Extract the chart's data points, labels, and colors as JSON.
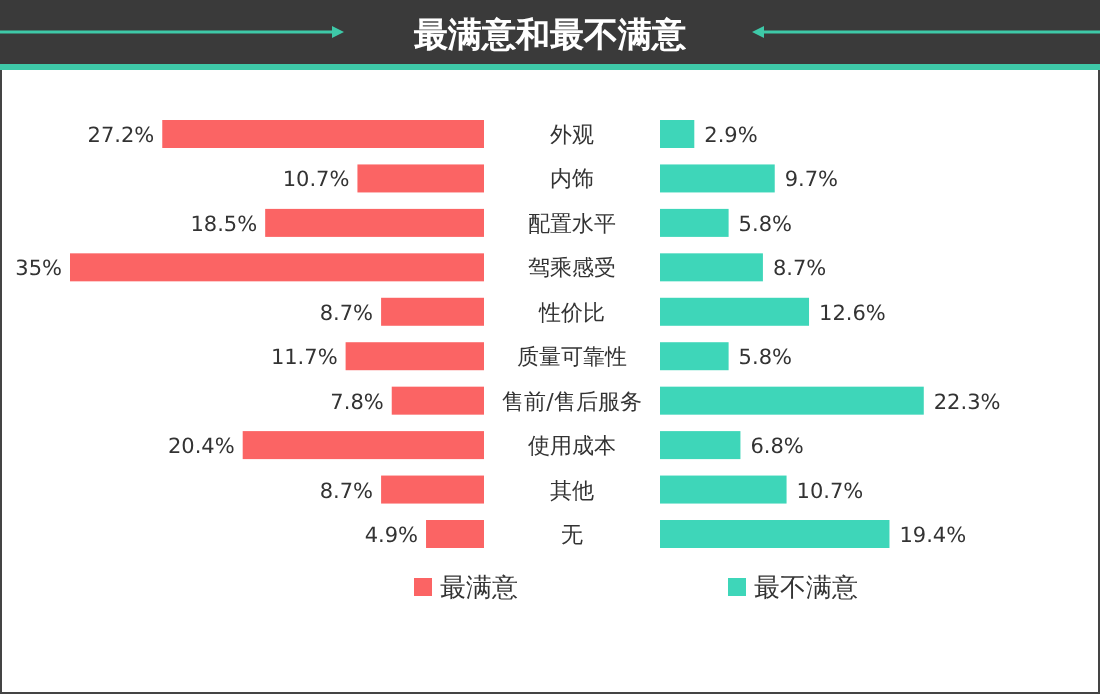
{
  "chart_data": [
    {
      "type": "bar",
      "orientation": "horizontal",
      "title": "最满意和最不满意",
      "categories": [
        "外观",
        "内饰",
        "配置水平",
        "驾乘感受",
        "性价比",
        "质量可靠性",
        "售前/售后服务",
        "使用成本",
        "其他",
        "无"
      ],
      "series": [
        {
          "name": "最满意",
          "color": "#fb6464",
          "values": [
            27.2,
            10.7,
            18.5,
            35,
            8.7,
            11.7,
            7.8,
            20.4,
            8.7,
            4.9
          ],
          "value_labels": [
            "27.2%",
            "10.7%",
            "18.5%",
            "35%",
            "8.7%",
            "11.7%",
            "7.8%",
            "20.4%",
            "8.7%",
            "4.9%"
          ]
        }
      ],
      "legend": "bottom"
    },
    {
      "type": "bar",
      "orientation": "horizontal",
      "categories": [
        null,
        null,
        null,
        null,
        null,
        null,
        null,
        null,
        null,
        null
      ],
      "series": [
        {
          "name": "最不满意",
          "color": "#3ed6b9",
          "values": [
            2.9,
            9.7,
            5.8,
            8.7,
            12.6,
            5.8,
            22.3,
            6.8,
            10.7,
            19.4
          ],
          "value_labels": [
            "2.9%",
            "9.7%",
            "5.8%",
            "8.7%",
            "12.6%",
            "5.8%",
            "22.3%",
            "6.8%",
            "10.7%",
            "19.4%"
          ]
        }
      ],
      "legend": "bottom"
    }
  ]
}
